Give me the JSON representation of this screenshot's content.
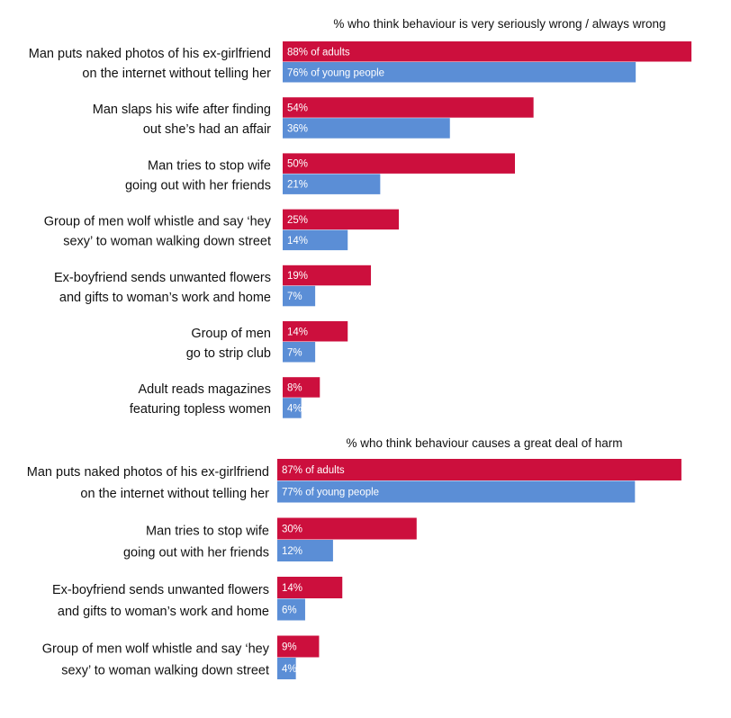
{
  "chart_data": [
    {
      "type": "bar",
      "orientation": "horizontal",
      "title": "% who think behaviour is very seriously wrong / always wrong",
      "xlim": [
        0,
        88
      ],
      "grid": false,
      "categories": [
        [
          "Man puts naked photos of his ex-girlfriend",
          "on the internet without telling her"
        ],
        [
          "Man slaps his wife after finding",
          "out she’s had an affair"
        ],
        [
          "Man tries to stop wife",
          "going out with her friends"
        ],
        [
          "Group of men wolf whistle and say ‘hey",
          "sexy’ to woman walking down street"
        ],
        [
          "Ex-boyfriend sends unwanted flowers",
          "and gifts to woman’s work and home"
        ],
        [
          "Group of men",
          "go to strip club"
        ],
        [
          "Adult reads magazines",
          "featuring topless women"
        ]
      ],
      "series": [
        {
          "color": "#cc0f3d",
          "values": [
            88,
            54,
            50,
            25,
            19,
            14,
            8
          ],
          "labels": [
            "88% of adults",
            "54%",
            "50%",
            "25%",
            "19%",
            "14%",
            "8%"
          ]
        },
        {
          "color": "#5b8ed6",
          "values": [
            76,
            36,
            21,
            14,
            7,
            7,
            4
          ],
          "labels": [
            "76% of young people",
            "36%",
            "21%",
            "14%",
            "7%",
            "7%",
            "4%"
          ]
        }
      ]
    },
    {
      "type": "bar",
      "orientation": "horizontal",
      "title": "% who think behaviour causes a great deal of harm",
      "xlim": [
        0,
        87
      ],
      "grid": false,
      "categories": [
        [
          "Man puts naked photos of his ex-girlfriend",
          "on the internet without telling her"
        ],
        [
          "Man tries to stop wife",
          "going out with her friends"
        ],
        [
          "Ex-boyfriend sends unwanted flowers",
          "and gifts to woman’s work and home"
        ],
        [
          "Group of men wolf whistle and say ‘hey",
          "sexy’ to woman walking down street"
        ]
      ],
      "series": [
        {
          "color": "#cc0f3d",
          "values": [
            87,
            30,
            14,
            9
          ],
          "labels": [
            "87% of adults",
            "30%",
            "14%",
            "9%"
          ]
        },
        {
          "color": "#5b8ed6",
          "values": [
            77,
            12,
            6,
            4
          ],
          "labels": [
            "77% of young people",
            "12%",
            "6%",
            "4%"
          ]
        }
      ]
    }
  ]
}
